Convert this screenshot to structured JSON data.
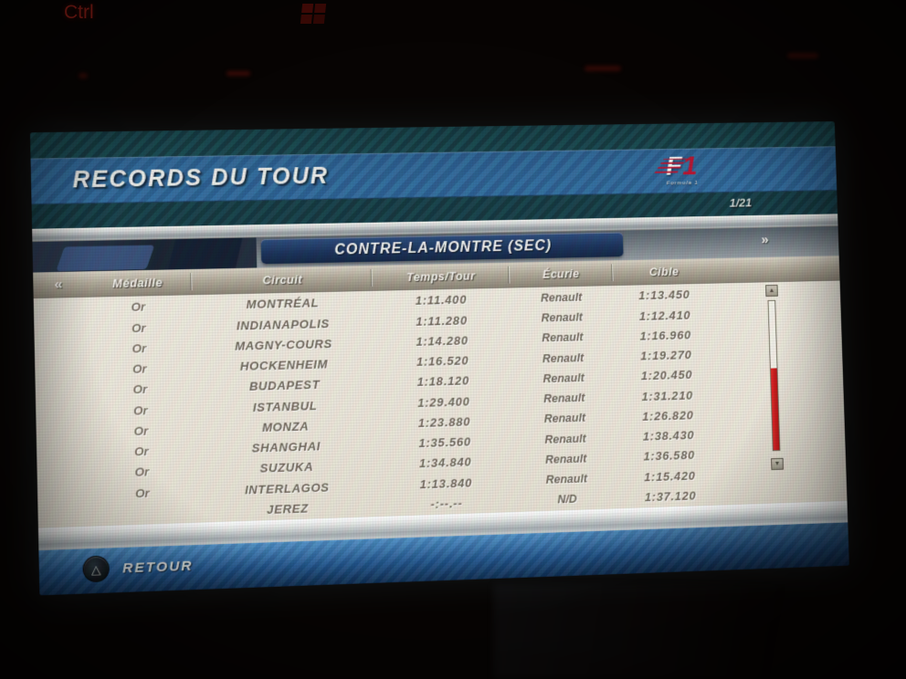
{
  "background": {
    "keyboard_key": "Ctrl"
  },
  "screen": {
    "title": "RECORDS DU TOUR",
    "logo": {
      "f": "F",
      "one": "1",
      "formula_text": "Formula 1"
    },
    "page_indicator": "1/21",
    "subtitle": "CONTRE-LA-MONTRE (SEC)",
    "nav": {
      "prev_icon": "«",
      "next_icon": "»"
    },
    "table": {
      "headers": {
        "medal": "Médaille",
        "circuit": "Circuit",
        "time": "Temps/Tour",
        "team": "Écurie",
        "target": "Cible"
      },
      "rows": [
        {
          "medal": "Or",
          "circuit": "MONTRÉAL",
          "time": "1:11.400",
          "team": "Renault",
          "target": "1:13.450"
        },
        {
          "medal": "Or",
          "circuit": "INDIANAPOLIS",
          "time": "1:11.280",
          "team": "Renault",
          "target": "1:12.410"
        },
        {
          "medal": "Or",
          "circuit": "MAGNY-COURS",
          "time": "1:14.280",
          "team": "Renault",
          "target": "1:16.960"
        },
        {
          "medal": "Or",
          "circuit": "HOCKENHEIM",
          "time": "1:16.520",
          "team": "Renault",
          "target": "1:19.270"
        },
        {
          "medal": "Or",
          "circuit": "BUDAPEST",
          "time": "1:18.120",
          "team": "Renault",
          "target": "1:20.450"
        },
        {
          "medal": "Or",
          "circuit": "ISTANBUL",
          "time": "1:29.400",
          "team": "Renault",
          "target": "1:31.210"
        },
        {
          "medal": "Or",
          "circuit": "MONZA",
          "time": "1:23.880",
          "team": "Renault",
          "target": "1:26.820"
        },
        {
          "medal": "Or",
          "circuit": "SHANGHAI",
          "time": "1:35.560",
          "team": "Renault",
          "target": "1:38.430"
        },
        {
          "medal": "Or",
          "circuit": "SUZUKA",
          "time": "1:34.840",
          "team": "Renault",
          "target": "1:36.580"
        },
        {
          "medal": "Or",
          "circuit": "INTERLAGOS",
          "time": "1:13.840",
          "team": "Renault",
          "target": "1:15.420"
        },
        {
          "medal": "",
          "circuit": "JEREZ",
          "time": "-:--.--",
          "team": "N/D",
          "target": "1:37.120"
        }
      ]
    },
    "scrollbar": {
      "up_icon": "▲",
      "down_icon": "▼"
    },
    "footer": {
      "button_icon": "△",
      "back_label": "RETOUR"
    }
  },
  "colors": {
    "title_bar_blue": "#2e6fa4",
    "teal_band": "#14424b",
    "subtitle_navy": "#16305c",
    "body_cream": "#ece6d8",
    "text_gray": "#6e6557",
    "scroll_red": "#d01414",
    "f1_red": "#c8102e",
    "footer_blue": "#1d5da0"
  }
}
